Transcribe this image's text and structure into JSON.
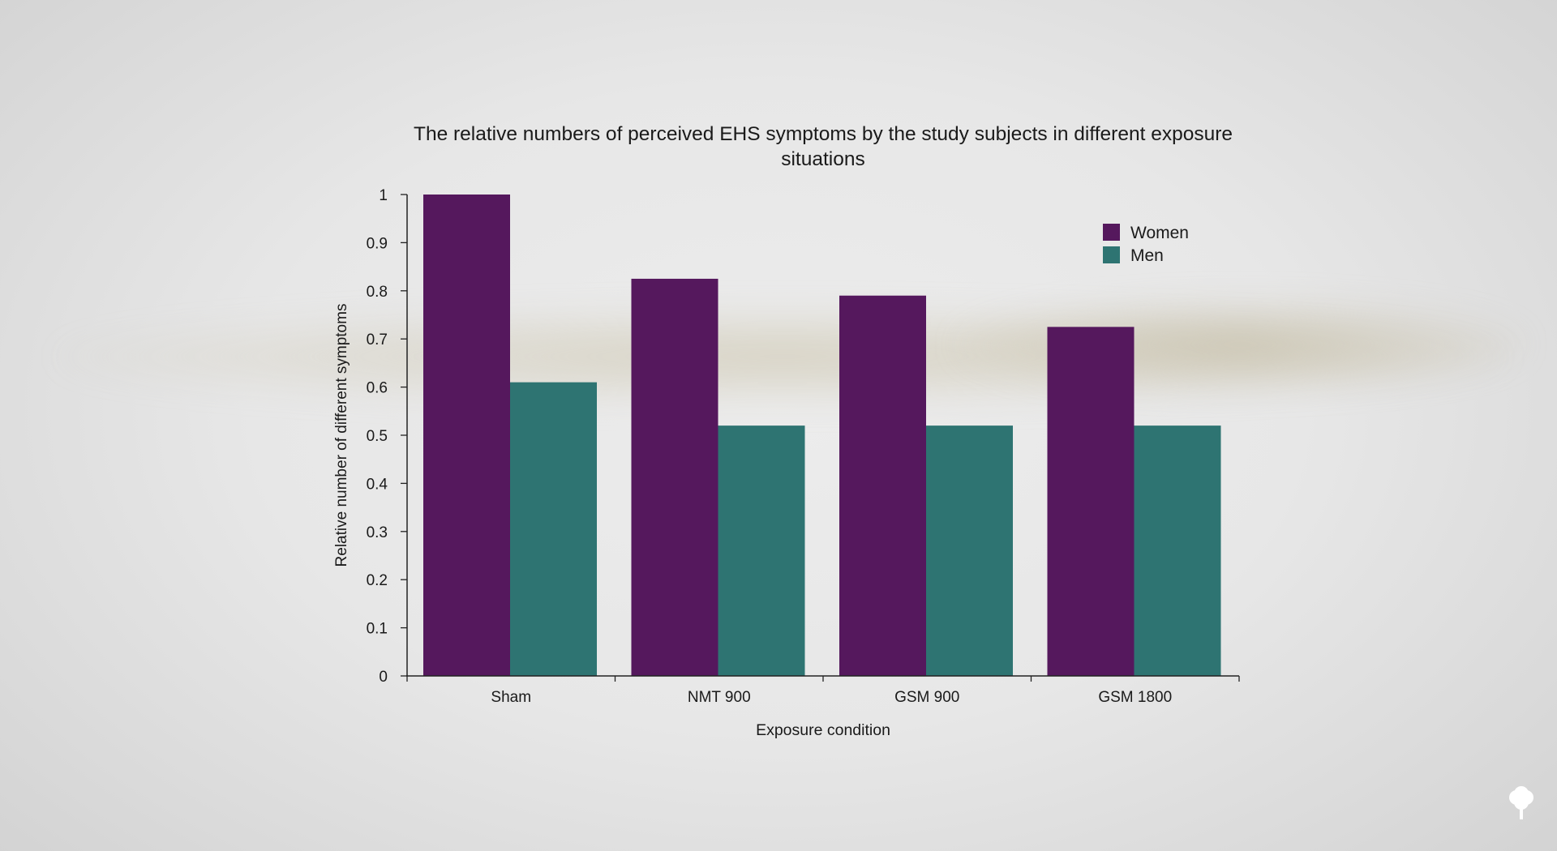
{
  "chart_data": {
    "type": "bar",
    "title": "The relative numbers of perceived EHS symptoms by the study subjects in different exposure situations",
    "xlabel": "Exposure condition",
    "ylabel": "Relative number of different symptoms",
    "categories": [
      "Sham",
      "NMT 900",
      "GSM 900",
      "GSM 1800"
    ],
    "series": [
      {
        "name": "Women",
        "color": "#55185d",
        "values": [
          1.0,
          0.825,
          0.79,
          0.725
        ]
      },
      {
        "name": "Men",
        "color": "#2e7472",
        "values": [
          0.61,
          0.52,
          0.52,
          0.52
        ]
      }
    ],
    "ylim": [
      0,
      1
    ],
    "yticks": [
      "0",
      "0.1",
      "0.2",
      "0.3",
      "0.4",
      "0.5",
      "0.6",
      "0.7",
      "0.8",
      "0.9",
      "1"
    ],
    "grid": false,
    "legend_position": "top-right"
  },
  "logo": {
    "icon": "tree-icon",
    "color": "#ffffff"
  }
}
